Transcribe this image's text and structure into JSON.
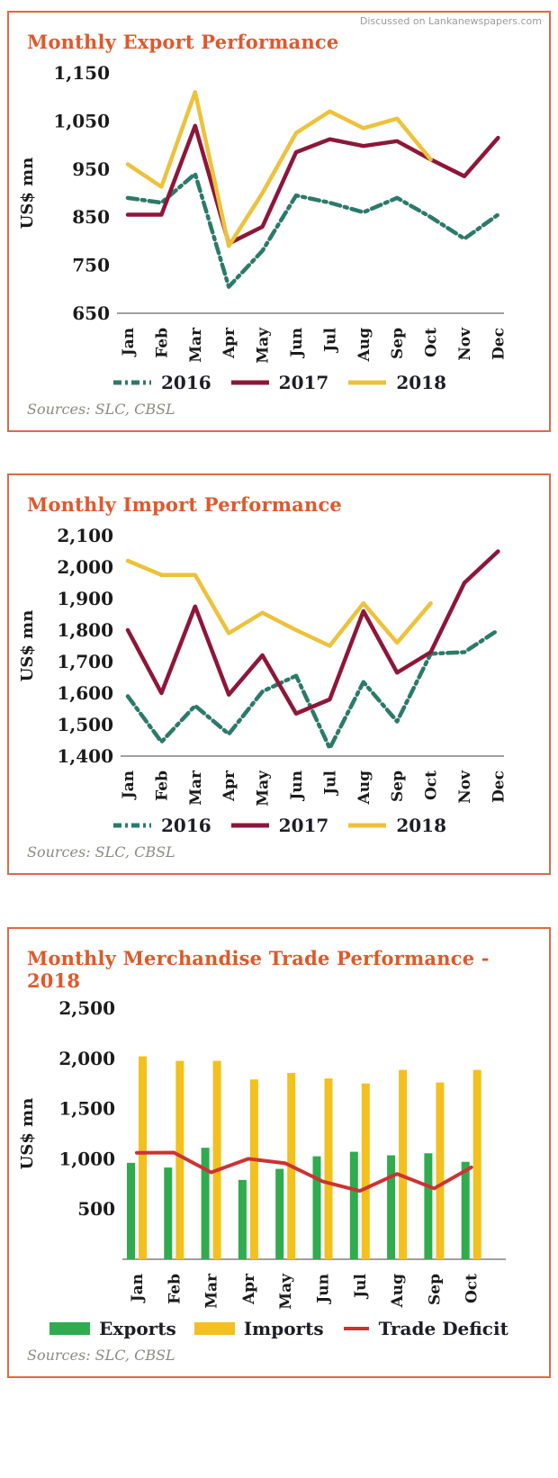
{
  "watermark": "Discussed on Lankanewspapers.com",
  "colors": {
    "panel_border": "#dc6a45",
    "title_orange": "#e0582a",
    "axis_gray": "#a0a0a0",
    "tick_text": "#1b1b1b",
    "legend_text": "#1d1d28",
    "sources_text": "#8b8b80",
    "series_2016": "#2b7a6a",
    "series_2017": "#8e1638",
    "series_2018": "#edc23b",
    "exports_green": "#2eac4e",
    "imports_yellow": "#f3c01d",
    "deficit_red": "#cc3333"
  },
  "chart_data": [
    {
      "id": "monthly-exports",
      "type": "line",
      "title": "Monthly Export Performance",
      "ylabel": "US$ mn",
      "sources": "Sources: SLC, CBSL",
      "ylim": [
        650,
        1150
      ],
      "y_ticks": [
        1150,
        1050,
        950,
        850,
        750,
        650
      ],
      "grid": false,
      "legend_position": "bottom",
      "categories": [
        "Jan",
        "Feb",
        "Mar",
        "Apr",
        "May",
        "Jun",
        "Jul",
        "Aug",
        "Sep",
        "Oct",
        "Nov",
        "Dec"
      ],
      "series": [
        {
          "name": "2016",
          "style": "dashed",
          "color": "#2b7a6a",
          "values": [
            890,
            880,
            940,
            705,
            780,
            895,
            880,
            860,
            890,
            850,
            805,
            855
          ]
        },
        {
          "name": "2017",
          "style": "solid",
          "color": "#8e1638",
          "values": [
            855,
            855,
            1040,
            795,
            830,
            985,
            1012,
            998,
            1008,
            970,
            935,
            1015
          ]
        },
        {
          "name": "2018",
          "style": "solid",
          "color": "#edc23b",
          "values": [
            960,
            913,
            1110,
            790,
            900,
            1025,
            1070,
            1035,
            1055,
            970
          ]
        }
      ]
    },
    {
      "id": "monthly-imports",
      "type": "line",
      "title": "Monthly Import Performance",
      "ylabel": "US$ mn",
      "sources": "Sources: SLC, CBSL",
      "ylim": [
        1400,
        2100
      ],
      "y_ticks": [
        2100,
        2000,
        1900,
        1800,
        1700,
        1600,
        1500,
        1400
      ],
      "grid": false,
      "legend_position": "bottom",
      "categories": [
        "Jan",
        "Feb",
        "Mar",
        "Apr",
        "May",
        "Jun",
        "Jul",
        "Aug",
        "Sep",
        "Oct",
        "Nov",
        "Dec"
      ],
      "series": [
        {
          "name": "2016",
          "style": "dashed",
          "color": "#2b7a6a",
          "values": [
            1590,
            1445,
            1560,
            1470,
            1605,
            1655,
            1425,
            1635,
            1510,
            1725,
            1730,
            1800
          ]
        },
        {
          "name": "2017",
          "style": "solid",
          "color": "#8e1638",
          "values": [
            1800,
            1600,
            1875,
            1595,
            1720,
            1535,
            1580,
            1860,
            1665,
            1730,
            1950,
            2050
          ]
        },
        {
          "name": "2018",
          "style": "solid",
          "color": "#edc23b",
          "values": [
            2020,
            1975,
            1975,
            1790,
            1855,
            1800,
            1750,
            1885,
            1760,
            1885
          ]
        }
      ]
    },
    {
      "id": "monthly-trade-2018",
      "type": "bar",
      "title": "Monthly Merchandise Trade Performance - 2018",
      "ylabel": "US$ mn",
      "sources": "Sources: SLC, CBSL",
      "ylim": [
        0,
        2500
      ],
      "y_ticks": [
        2500,
        2000,
        1500,
        1000,
        500
      ],
      "grid": false,
      "legend_position": "bottom",
      "categories": [
        "Jan",
        "Feb",
        "Mar",
        "Apr",
        "May",
        "Jun",
        "Jul",
        "Aug",
        "Sep",
        "Oct"
      ],
      "series": [
        {
          "name": "Exports",
          "kind": "bar",
          "color": "#2eac4e",
          "values": [
            960,
            913,
            1110,
            790,
            900,
            1025,
            1070,
            1035,
            1055,
            970
          ]
        },
        {
          "name": "Imports",
          "kind": "bar",
          "color": "#f3c01d",
          "values": [
            2020,
            1975,
            1975,
            1790,
            1855,
            1800,
            1750,
            1885,
            1760,
            1885
          ]
        },
        {
          "name": "Trade Deficit",
          "kind": "line",
          "color": "#cc3333",
          "values": [
            1060,
            1062,
            865,
            1000,
            955,
            775,
            680,
            850,
            705,
            915
          ]
        }
      ]
    }
  ]
}
